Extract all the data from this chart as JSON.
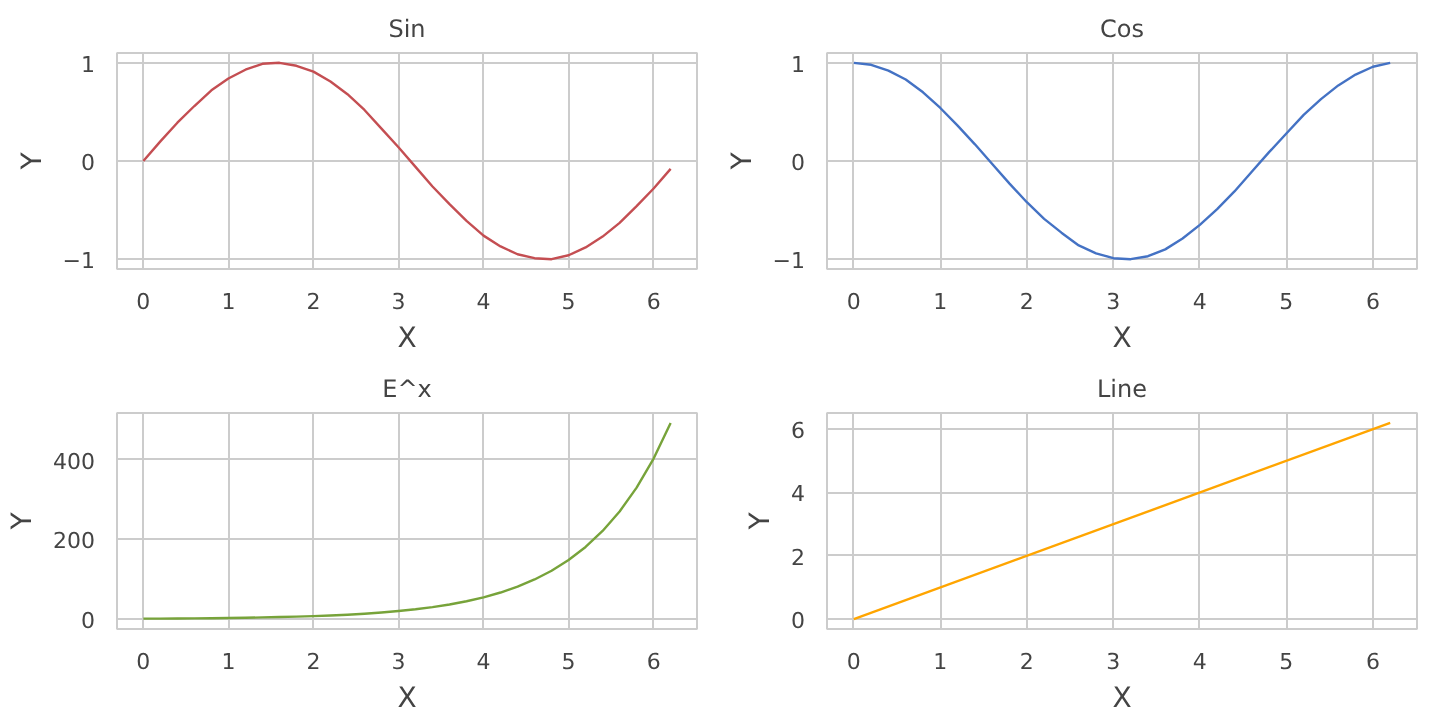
{
  "chart_data": [
    {
      "type": "line",
      "title": "Sin",
      "xlabel": "X",
      "ylabel": "Y",
      "grid": true,
      "xlim": [
        -0.31,
        6.51
      ],
      "ylim": [
        -1.1,
        1.1
      ],
      "xticks": [
        0,
        1,
        2,
        3,
        4,
        5,
        6
      ],
      "yticks": [
        {
          "value": -1,
          "label": "−1"
        },
        0,
        1
      ],
      "x": [
        0,
        0.2,
        0.4,
        0.6,
        0.8,
        1.0,
        1.2,
        1.4,
        1.6,
        1.8,
        2.0,
        2.2,
        2.4,
        2.6,
        2.8,
        3.0,
        3.2,
        3.4,
        3.6,
        3.8,
        4.0,
        4.2,
        4.4,
        4.6,
        4.8,
        5.0,
        5.2,
        5.4,
        5.6,
        5.8,
        6.0,
        6.2
      ],
      "series": [
        {
          "color": "#c44e52",
          "values": [
            0,
            0.2,
            0.39,
            0.56,
            0.72,
            0.84,
            0.93,
            0.99,
            1.0,
            0.97,
            0.91,
            0.81,
            0.68,
            0.52,
            0.33,
            0.14,
            -0.06,
            -0.26,
            -0.44,
            -0.61,
            -0.76,
            -0.87,
            -0.95,
            -0.99,
            -1.0,
            -0.96,
            -0.88,
            -0.77,
            -0.63,
            -0.46,
            -0.28,
            -0.08
          ]
        }
      ]
    },
    {
      "type": "line",
      "title": "Cos",
      "xlabel": "X",
      "ylabel": "Y",
      "grid": true,
      "xlim": [
        -0.31,
        6.51
      ],
      "ylim": [
        -1.1,
        1.1
      ],
      "xticks": [
        0,
        1,
        2,
        3,
        4,
        5,
        6
      ],
      "yticks": [
        {
          "value": -1,
          "label": "−1"
        },
        0,
        1
      ],
      "x": [
        0,
        0.2,
        0.4,
        0.6,
        0.8,
        1.0,
        1.2,
        1.4,
        1.6,
        1.8,
        2.0,
        2.2,
        2.4,
        2.6,
        2.8,
        3.0,
        3.2,
        3.4,
        3.6,
        3.8,
        4.0,
        4.2,
        4.4,
        4.6,
        4.8,
        5.0,
        5.2,
        5.4,
        5.6,
        5.8,
        6.0,
        6.2
      ],
      "series": [
        {
          "color": "#4472c4",
          "values": [
            1,
            0.98,
            0.92,
            0.83,
            0.7,
            0.54,
            0.36,
            0.17,
            -0.03,
            -0.23,
            -0.42,
            -0.59,
            -0.73,
            -0.86,
            -0.94,
            -0.99,
            -1.0,
            -0.97,
            -0.9,
            -0.79,
            -0.65,
            -0.49,
            -0.31,
            -0.11,
            0.09,
            0.28,
            0.47,
            0.63,
            0.77,
            0.88,
            0.96,
            1.0
          ]
        }
      ]
    },
    {
      "type": "line",
      "title": "E^x",
      "xlabel": "X",
      "ylabel": "Y",
      "grid": true,
      "xlim": [
        -0.31,
        6.51
      ],
      "ylim": [
        -25,
        518
      ],
      "xticks": [
        0,
        1,
        2,
        3,
        4,
        5,
        6
      ],
      "yticks": [
        0,
        200,
        400
      ],
      "x": [
        0,
        0.2,
        0.4,
        0.6,
        0.8,
        1.0,
        1.2,
        1.4,
        1.6,
        1.8,
        2.0,
        2.2,
        2.4,
        2.6,
        2.8,
        3.0,
        3.2,
        3.4,
        3.6,
        3.8,
        4.0,
        4.2,
        4.4,
        4.6,
        4.8,
        5.0,
        5.2,
        5.4,
        5.6,
        5.8,
        6.0,
        6.2
      ],
      "series": [
        {
          "color": "#77a33a",
          "values": [
            1,
            1.2,
            1.5,
            1.8,
            2.2,
            2.7,
            3.3,
            4.1,
            5,
            6,
            7.4,
            9,
            11,
            13.5,
            16.4,
            20.1,
            24.5,
            30,
            36.6,
            44.7,
            54.6,
            66.7,
            81.5,
            99.5,
            121.5,
            148.4,
            181.3,
            221.4,
            270.4,
            330.3,
            403.4,
            492.7
          ]
        }
      ]
    },
    {
      "type": "line",
      "title": "Line",
      "xlabel": "X",
      "ylabel": "Y",
      "grid": true,
      "xlim": [
        -0.31,
        6.51
      ],
      "ylim": [
        -0.31,
        6.51
      ],
      "xticks": [
        0,
        1,
        2,
        3,
        4,
        5,
        6
      ],
      "yticks": [
        0,
        2,
        4,
        6
      ],
      "x": [
        0,
        6.2
      ],
      "series": [
        {
          "color": "#ffa500",
          "values": [
            0,
            6.2
          ]
        }
      ]
    }
  ]
}
